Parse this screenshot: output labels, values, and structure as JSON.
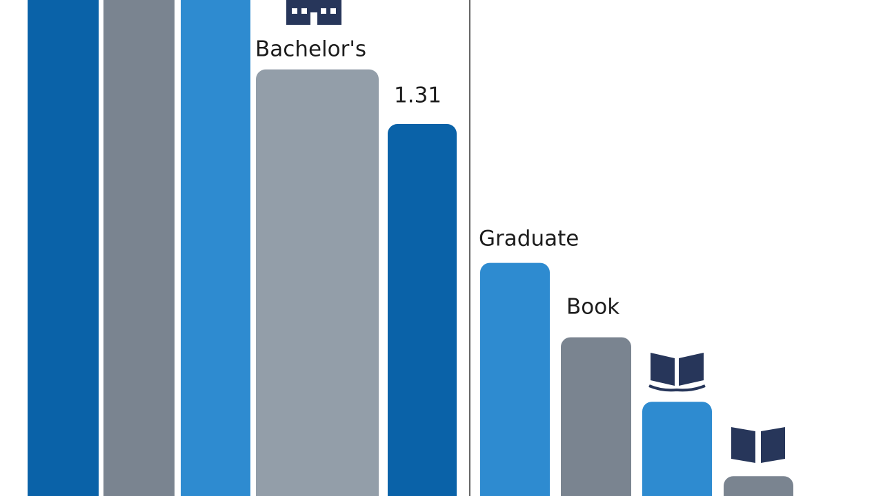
{
  "chart_data": {
    "type": "bar",
    "categories": [
      null,
      null,
      null,
      null,
      null,
      null,
      null,
      null,
      null
    ],
    "series": [
      {
        "values": [
          100,
          100,
          100,
          86,
          75,
          47,
          32,
          19,
          4
        ],
        "colors": [
          "#0a62a8",
          "#7a8490",
          "#2e8bd0",
          "#939ea9",
          "#0a62a8",
          "#2e8bd0",
          "#7a8490",
          "#2e8bd0",
          "#7a8490"
        ]
      }
    ],
    "ylim": [
      0,
      100
    ],
    "annotations": [
      "Bachelor's",
      "1.31",
      "Graduate",
      "Book"
    ]
  }
}
